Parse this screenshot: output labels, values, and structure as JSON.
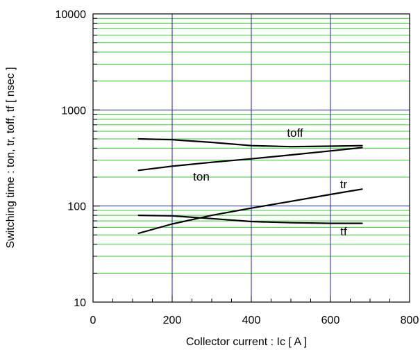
{
  "chart_data": {
    "type": "line",
    "xlabel": "Collector current : Ic [ A ]",
    "ylabel": "Switching time : ton, tr, toff, tf [ nsec ]",
    "xlim": [
      0,
      800
    ],
    "ylim": [
      10,
      10000
    ],
    "yscale": "log",
    "grid": true,
    "x_ticks": [
      0,
      200,
      400,
      600,
      800
    ],
    "x_tick_labels": [
      "0",
      "200",
      "400",
      "600",
      "800"
    ],
    "y_ticks": [
      10,
      100,
      1000,
      10000
    ],
    "y_tick_labels": [
      "10",
      "100",
      "1000",
      "10000"
    ],
    "colors": {
      "major_grid": "#2222aa",
      "minor_grid": "#33cc33",
      "line": "#000000"
    },
    "series": [
      {
        "name": "toff",
        "x": [
          115,
          200,
          300,
          400,
          500,
          600,
          680
        ],
        "y": [
          500,
          490,
          460,
          425,
          415,
          420,
          425
        ]
      },
      {
        "name": "ton",
        "x": [
          115,
          200,
          300,
          400,
          500,
          600,
          680
        ],
        "y": [
          235,
          260,
          285,
          310,
          340,
          375,
          405
        ]
      },
      {
        "name": "tr",
        "x": [
          115,
          200,
          300,
          400,
          500,
          600,
          680
        ],
        "y": [
          52,
          65,
          80,
          95,
          112,
          132,
          150
        ]
      },
      {
        "name": "tf",
        "x": [
          115,
          200,
          300,
          400,
          500,
          600,
          680
        ],
        "y": [
          80,
          79,
          74,
          69,
          67,
          66,
          66
        ]
      }
    ]
  }
}
